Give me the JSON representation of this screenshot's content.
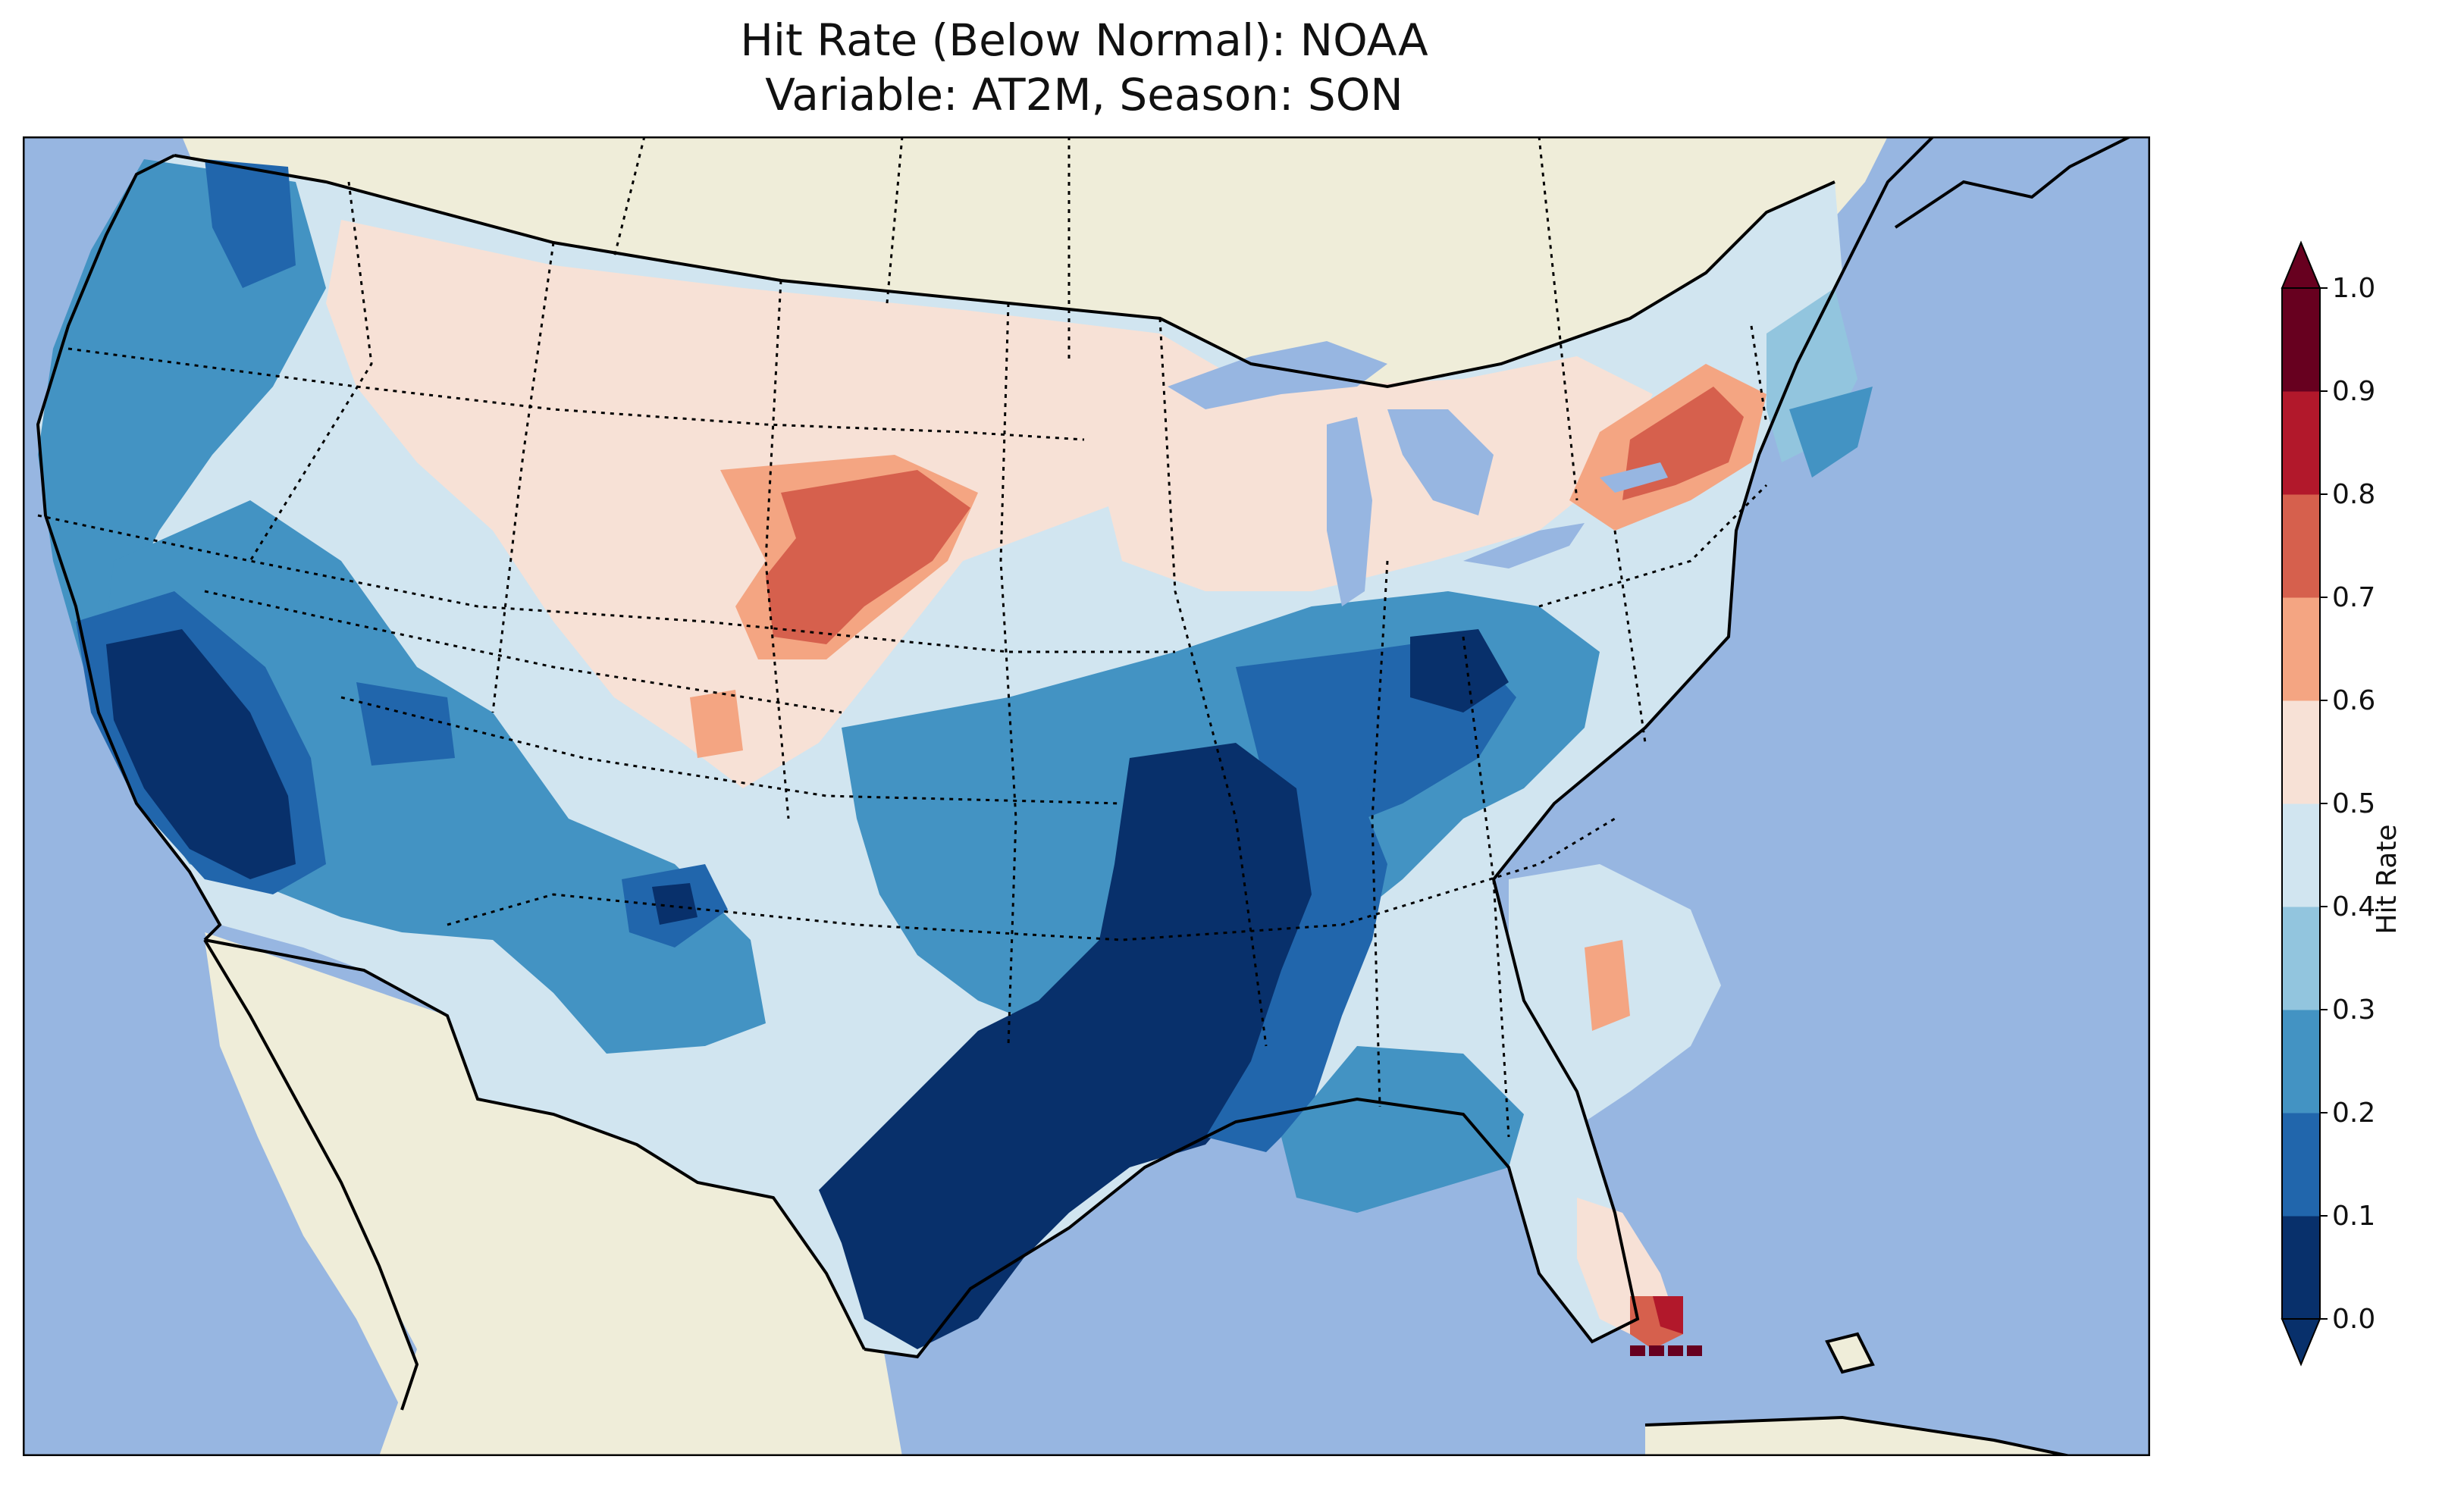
{
  "title": {
    "line1": "Hit Rate (Below Normal): NOAA",
    "line2": "Variable: AT2M, Season: SON"
  },
  "colorbar": {
    "label": "Hit Rate",
    "ticks": [
      "0.0",
      "0.1",
      "0.2",
      "0.3",
      "0.4",
      "0.5",
      "0.6",
      "0.7",
      "0.8",
      "0.9",
      "1.0"
    ],
    "colors": [
      "#08306b",
      "#2166ac",
      "#4393c3",
      "#92c5de",
      "#d1e5f0",
      "#f7e1d6",
      "#f4a582",
      "#d6604d",
      "#b2182b",
      "#67001f"
    ]
  },
  "map": {
    "ocean_color": "#97b6e1",
    "land_color": "#efedd9",
    "regions": [
      {
        "name": "pacific-northwest",
        "value": 0.25
      },
      {
        "name": "northern-rockies",
        "value": 0.55
      },
      {
        "name": "northern-plains",
        "value": 0.62
      },
      {
        "name": "california-nevada",
        "value": 0.05
      },
      {
        "name": "desert-southwest",
        "value": 0.25
      },
      {
        "name": "southern-plains",
        "value": 0.05
      },
      {
        "name": "lower-mississippi",
        "value": 0.05
      },
      {
        "name": "ohio-valley",
        "value": 0.15
      },
      {
        "name": "great-lakes",
        "value": 0.55
      },
      {
        "name": "pennsylvania-new-york",
        "value": 0.72
      },
      {
        "name": "new-england",
        "value": 0.3
      },
      {
        "name": "southeast",
        "value": 0.45
      },
      {
        "name": "south-florida",
        "value": 0.85
      }
    ]
  }
}
